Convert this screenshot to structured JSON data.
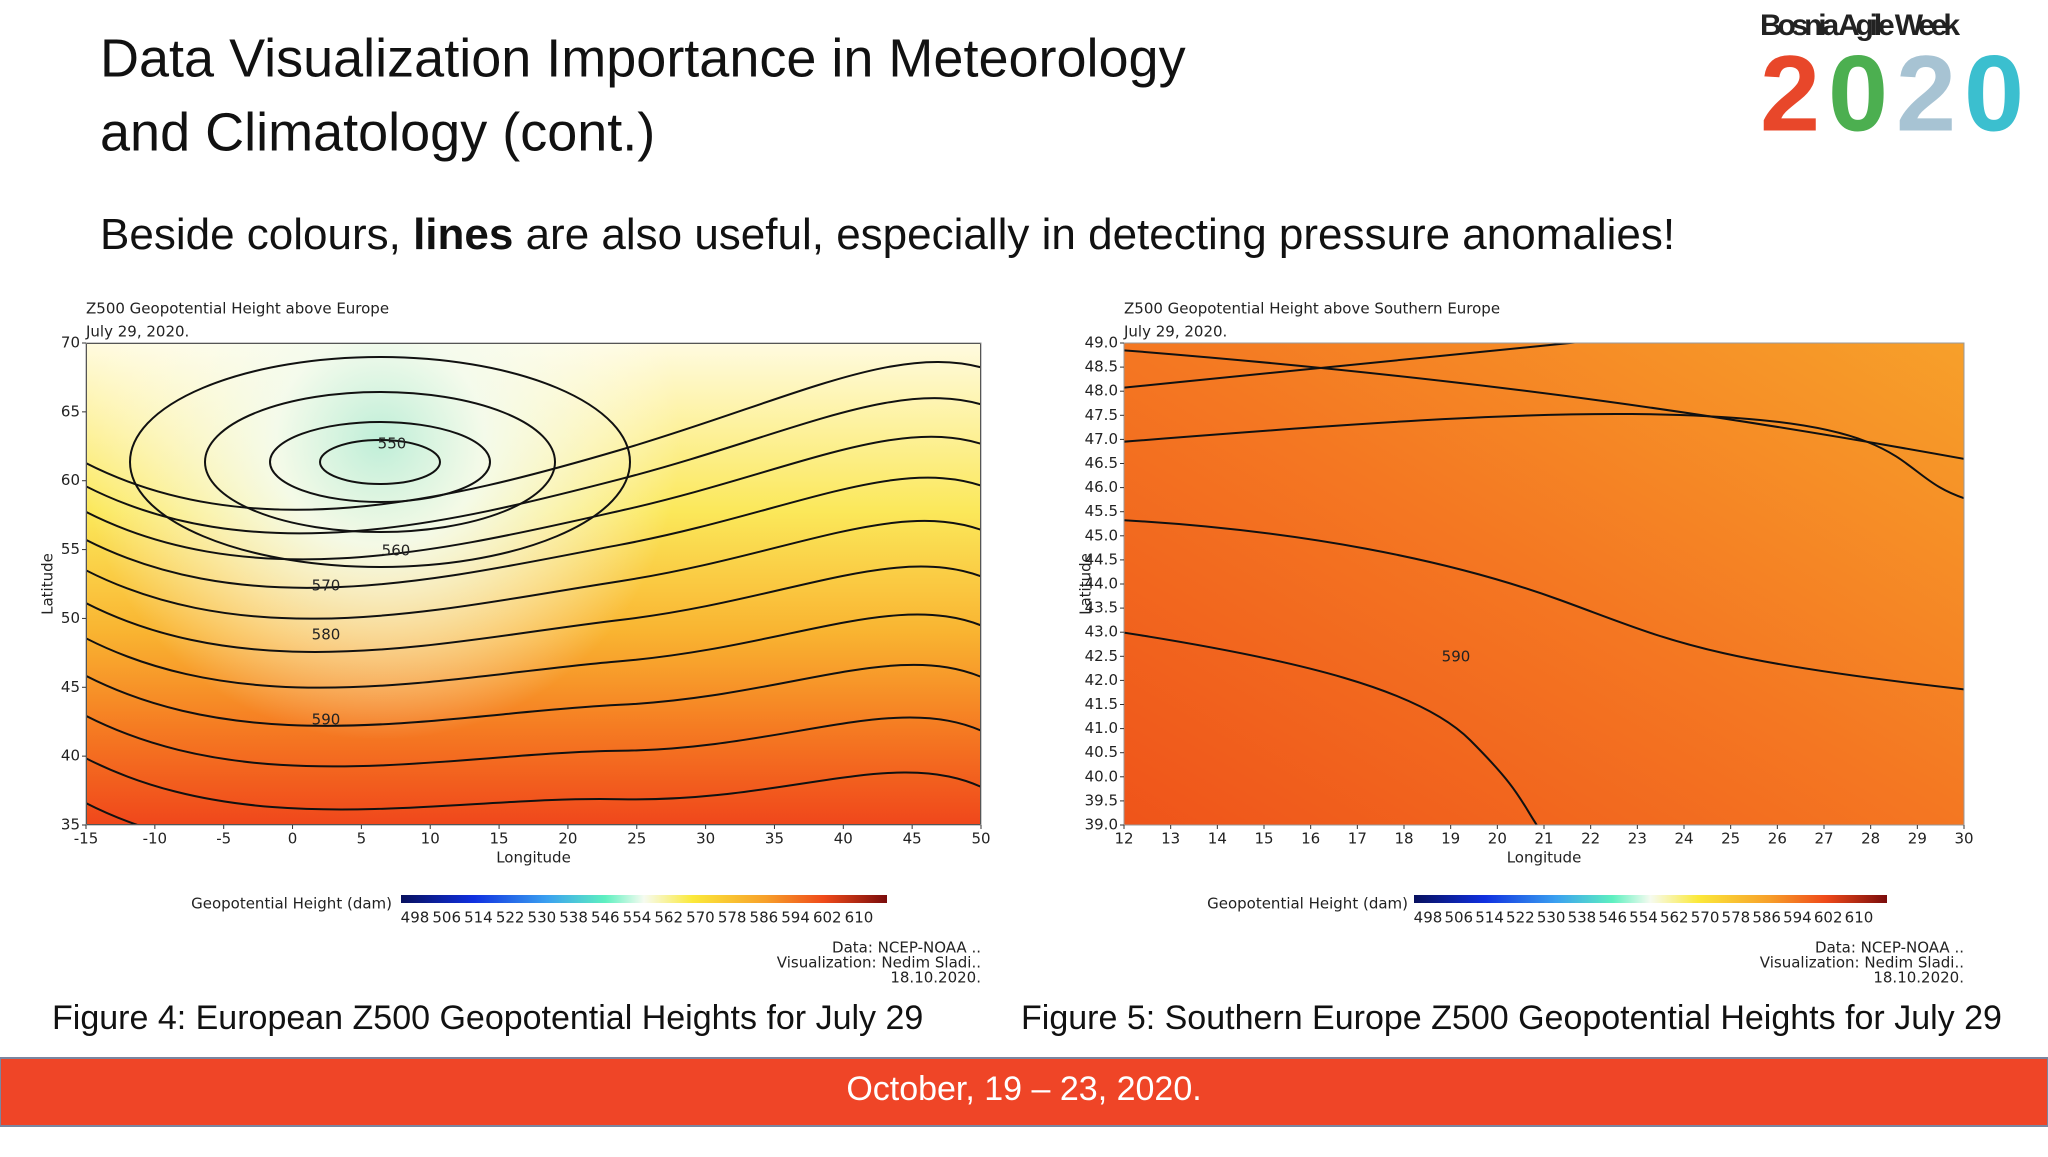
{
  "slide": {
    "title": [
      "Data Visualization Importance in Meteorology",
      "and Climatology (cont.)"
    ],
    "subtitle": [
      "Beside colours, ",
      "lines",
      " are also useful, especially in detecting pressure anomalies!"
    ],
    "logo": {
      "name": "Bosnia Agile Week",
      "year": [
        "2",
        "0",
        "2",
        "0"
      ]
    },
    "footer": "October, 19 – 23, 2020."
  },
  "figures": [
    {
      "title": "Z500 Geopotential Height above Europe",
      "date": "July 29, 2020.",
      "xlabel": "Longitude",
      "ylabel": "Latitude",
      "xlim": [
        -15,
        50
      ],
      "xticks": [
        -15,
        -10,
        -5,
        0,
        5,
        10,
        15,
        20,
        25,
        30,
        35,
        40,
        45,
        50
      ],
      "ylim": [
        35,
        70
      ],
      "yticks": [
        35,
        40,
        45,
        50,
        55,
        60,
        65,
        70
      ],
      "contour_labels": [
        "550",
        "560",
        "570",
        "580",
        "590"
      ],
      "colorbar_label": "Geopotential Height (dam)",
      "colorbar_ticks": [
        498,
        506,
        514,
        522,
        530,
        538,
        546,
        554,
        562,
        570,
        578,
        586,
        594,
        602,
        610
      ],
      "credits": [
        "Data: NCEP-NOAA ..",
        "Visualization: Nedim Sladi..",
        "18.10.2020."
      ],
      "caption": "Figure 4: European Z500 Geopotential Heights for July 29"
    },
    {
      "title": "Z500 Geopotential Height above Southern Europe",
      "date": "July 29, 2020.",
      "xlabel": "Longitude",
      "ylabel": "Latitude",
      "xlim": [
        12,
        30
      ],
      "xticks": [
        12,
        13,
        14,
        15,
        16,
        17,
        18,
        19,
        20,
        21,
        22,
        23,
        24,
        25,
        26,
        27,
        28,
        29,
        30
      ],
      "ylim": [
        39,
        49
      ],
      "yticks": [
        {
          "value": 39,
          "label": "39.0"
        },
        39.5,
        {
          "value": 40,
          "label": "40.0"
        },
        40.5,
        {
          "value": 41,
          "label": "41.0"
        },
        41.5,
        {
          "value": 42,
          "label": "42.0"
        },
        42.5,
        {
          "value": 43,
          "label": "43.0"
        },
        43.5,
        {
          "value": 44,
          "label": "44.0"
        },
        44.5,
        {
          "value": 45,
          "label": "45.0"
        },
        45.5,
        {
          "value": 46,
          "label": "46.0"
        },
        46.5,
        {
          "value": 47,
          "label": "47.0"
        },
        47.5,
        {
          "value": 48,
          "label": "48.0"
        },
        48.5,
        {
          "value": 49,
          "label": "49.0"
        }
      ],
      "contour_labels": [
        "590"
      ],
      "colorbar_label": "Geopotential Height (dam)",
      "colorbar_ticks": [
        498,
        506,
        514,
        522,
        530,
        538,
        546,
        554,
        562,
        570,
        578,
        586,
        594,
        602,
        610
      ],
      "credits": [
        "Data: NCEP-NOAA ..",
        "Visualization: Nedim Sladi..",
        "18.10.2020."
      ],
      "caption": "Figure 5: Southern Europe Z500 Geopotential Heights for July 29"
    }
  ]
}
